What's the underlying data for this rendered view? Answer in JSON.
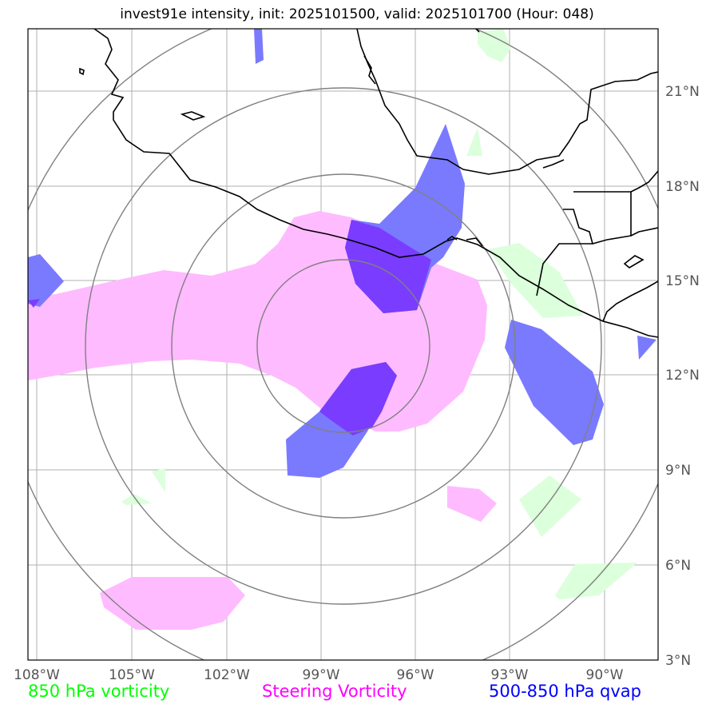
{
  "title": "invest91e intensity, init: 2025101500, valid: 2025101700 (Hour: 048)",
  "x_ticks": [
    "108°W",
    "105°W",
    "102°W",
    "99°W",
    "96°W",
    "93°W",
    "90°W"
  ],
  "y_ticks": [
    "21°N",
    "18°N",
    "15°N",
    "12°N",
    "9°N",
    "6°N",
    "3°N"
  ],
  "legend": [
    {
      "label": "850 hPa vorticity",
      "color": "#00ff00"
    },
    {
      "label": "Steering Vorticity",
      "color": "#ff00ff"
    },
    {
      "label": "500-850 hPa qvap",
      "color": "#0000ff"
    }
  ],
  "colors": {
    "vorticity_fill": "#dcffdc",
    "steering_fill": "#ffbbff",
    "qvap_fill": "#7a7aff",
    "overlap_fill": "#7a3cff",
    "gridline": "#b0b0b0",
    "range_ring": "#808080",
    "coastline": "#000000"
  }
}
